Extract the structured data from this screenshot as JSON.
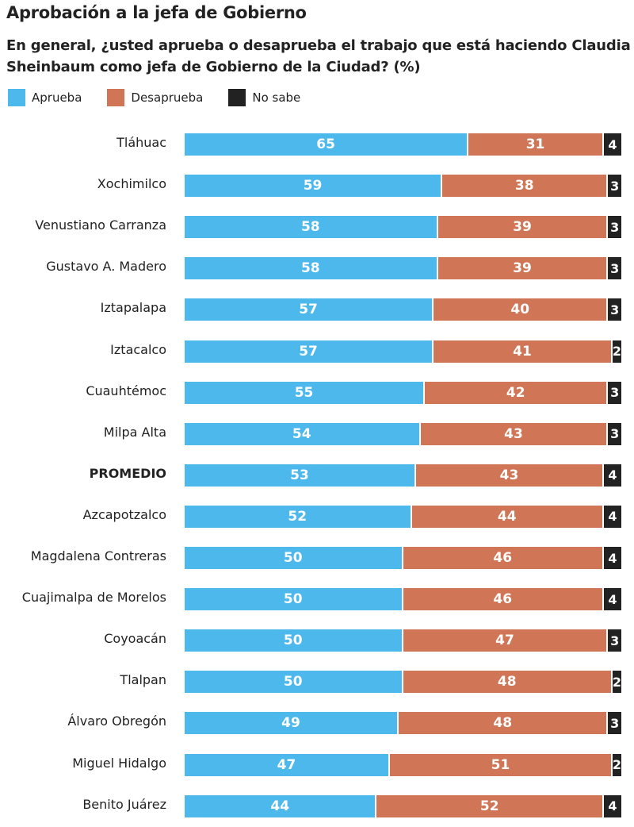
{
  "title": "Aprobación a la jefa de Gobierno",
  "subtitle": "En general, ¿usted aprueba o desaprueba el trabajo que está haciendo Claudia Sheinbaum como jefa de Gobierno de la Ciudad? (%)",
  "chart_data": {
    "type": "bar",
    "orientation": "horizontal-stacked",
    "title": "Aprobación a la jefa de Gobierno",
    "legend": "top-left",
    "categories": [
      "Tláhuac",
      "Xochimilco",
      "Venustiano Carranza",
      "Gustavo A. Madero",
      "Iztapalapa",
      "Iztacalco",
      "Cuauhtémoc",
      "Milpa Alta",
      "PROMEDIO",
      "Azcapotzalco",
      "Magdalena Contreras",
      "Cuajimalpa de Morelos",
      "Coyoacán",
      "Tlalpan",
      "Álvaro Obregón",
      "Miguel Hidalgo",
      "Benito Juárez"
    ],
    "highlight": "PROMEDIO",
    "series": [
      {
        "name": "Aprueba",
        "color": "#4db8ec",
        "values": [
          65,
          59,
          58,
          58,
          57,
          57,
          55,
          54,
          53,
          52,
          50,
          50,
          50,
          50,
          49,
          47,
          44
        ]
      },
      {
        "name": "Desaprueba",
        "color": "#d07656",
        "values": [
          31,
          38,
          39,
          39,
          40,
          41,
          42,
          43,
          43,
          44,
          46,
          46,
          47,
          48,
          48,
          51,
          52
        ]
      },
      {
        "name": "No sabe",
        "color": "#222222",
        "values": [
          4,
          3,
          3,
          3,
          3,
          2,
          3,
          3,
          4,
          4,
          4,
          4,
          3,
          2,
          3,
          2,
          4
        ]
      }
    ],
    "xlim": [
      0,
      100
    ]
  }
}
